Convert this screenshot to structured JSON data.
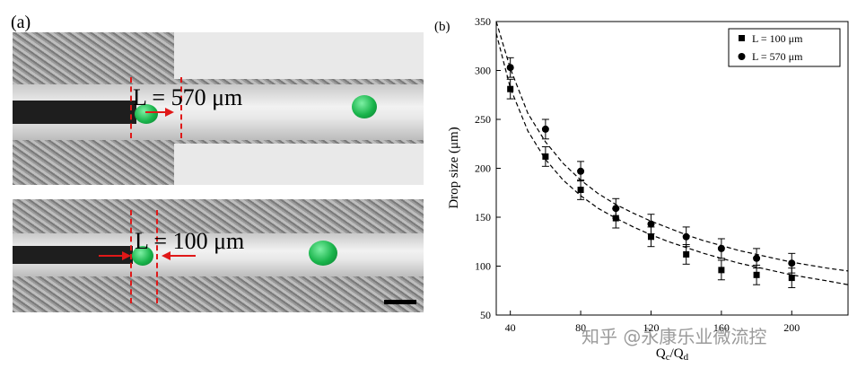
{
  "panel_a": {
    "label": "(a)",
    "top_length_label": "L = 570 μm",
    "bottom_length_label": "L = 100 μm"
  },
  "panel_b_label": "(b)",
  "watermark": "知乎 @永康乐业微流控",
  "colors": {
    "droplet": "#19b44b",
    "marker": "#e01818",
    "series": "#000000"
  },
  "chart_data": {
    "type": "scatter",
    "xlabel": "Qc/Qd",
    "ylabel": "Drop size (μm)",
    "xlim": [
      32,
      232
    ],
    "ylim": [
      50,
      350
    ],
    "x_ticks": [
      40,
      80,
      120,
      160,
      200
    ],
    "y_ticks": [
      50,
      100,
      150,
      200,
      250,
      300,
      350
    ],
    "legend_position": "top-right",
    "error_bars": true,
    "fit_lines": "dashed",
    "series": [
      {
        "name": "L = 100 μm",
        "marker": "square",
        "x": [
          40,
          60,
          80,
          100,
          120,
          140,
          160,
          180,
          200
        ],
        "y": [
          281,
          212,
          178,
          149,
          130,
          112,
          96,
          91,
          88
        ],
        "err": [
          10,
          10,
          10,
          10,
          10,
          10,
          10,
          10,
          10
        ],
        "fit_x": [
          32,
          40,
          50,
          60,
          70,
          80,
          90,
          100,
          110,
          120,
          130,
          140,
          150,
          160,
          170,
          180,
          190,
          200,
          210,
          220,
          232
        ],
        "fit_y": [
          338,
          282,
          238,
          209,
          188,
          172,
          159,
          149,
          140,
          132,
          125,
          119,
          113,
          108,
          103,
          99,
          95,
          91,
          88,
          85,
          81
        ]
      },
      {
        "name": "L = 570 μm",
        "marker": "circle",
        "x": [
          40,
          60,
          80,
          100,
          120,
          140,
          160,
          180,
          200
        ],
        "y": [
          303,
          240,
          197,
          159,
          143,
          130,
          118,
          108,
          103
        ],
        "err": [
          10,
          10,
          10,
          10,
          10,
          10,
          10,
          10,
          10
        ],
        "fit_x": [
          32,
          40,
          50,
          60,
          70,
          80,
          90,
          100,
          110,
          120,
          130,
          140,
          150,
          160,
          170,
          180,
          190,
          200,
          210,
          220,
          232
        ],
        "fit_y": [
          350,
          302,
          256,
          227,
          205,
          188,
          174,
          163,
          154,
          146,
          139,
          132,
          126,
          121,
          116,
          112,
          108,
          104,
          101,
          98,
          95
        ]
      }
    ]
  }
}
